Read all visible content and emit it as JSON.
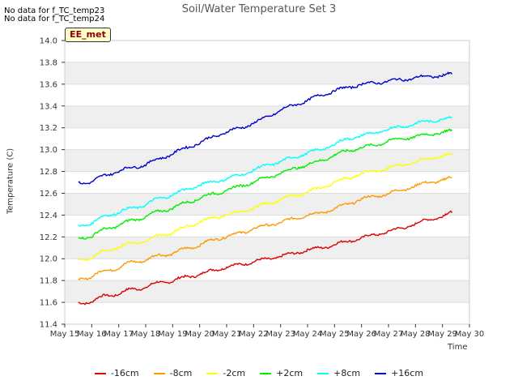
{
  "chart_data": {
    "type": "line",
    "title": "Soil/Water Temperature Set 3",
    "xlabel": "Time",
    "ylabel": "Temperature (C)",
    "no_data_notes": [
      "No data for f_TC_temp23",
      "No data for f_TC_temp24"
    ],
    "site_label": "EE_met",
    "ylim": [
      11.4,
      14.0
    ],
    "yticks": [
      11.4,
      11.6,
      11.8,
      12.0,
      12.2,
      12.4,
      12.6,
      12.8,
      13.0,
      13.2,
      13.4,
      13.6,
      13.8,
      14.0
    ],
    "ytick_labels": [
      "11.4",
      "11.6",
      "11.8",
      "12.0",
      "12.2",
      "12.4",
      "12.6",
      "12.8",
      "13.0",
      "13.2",
      "13.4",
      "13.6",
      "13.8",
      "14.0"
    ],
    "xlim": [
      15,
      30
    ],
    "xticks": [
      15,
      16,
      17,
      18,
      19,
      20,
      21,
      22,
      23,
      24,
      25,
      26,
      27,
      28,
      29,
      30
    ],
    "xtick_labels": [
      "May 15",
      "May 16",
      "May 17",
      "May 18",
      "May 19",
      "May 20",
      "May 21",
      "May 22",
      "May 23",
      "May 24",
      "May 25",
      "May 26",
      "May 27",
      "May 28",
      "May 29",
      "May 30"
    ],
    "x": [
      15.5,
      16.0,
      16.5,
      17.0,
      17.5,
      18.0,
      18.5,
      19.0,
      19.5,
      20.0,
      20.5,
      21.0,
      21.5,
      22.0,
      22.5,
      23.0,
      23.5,
      24.0,
      24.5,
      25.0,
      25.5,
      26.0,
      26.5,
      27.0,
      27.5,
      28.0,
      28.5,
      29.0,
      29.35
    ],
    "series": [
      {
        "name": "-16cm",
        "color": "#dd0000",
        "values": [
          11.6,
          11.6,
          11.67,
          11.67,
          11.73,
          11.73,
          11.79,
          11.79,
          11.84,
          11.85,
          11.9,
          11.92,
          11.95,
          11.97,
          12.0,
          12.02,
          12.05,
          12.08,
          12.1,
          12.13,
          12.16,
          12.19,
          12.22,
          12.25,
          12.28,
          12.32,
          12.36,
          12.39,
          12.42
        ]
      },
      {
        "name": "-8cm",
        "color": "#ff9900",
        "values": [
          11.82,
          11.83,
          11.9,
          11.91,
          11.98,
          11.98,
          12.04,
          12.04,
          12.1,
          12.12,
          12.18,
          12.2,
          12.24,
          12.27,
          12.31,
          12.33,
          12.37,
          12.4,
          12.42,
          12.46,
          12.5,
          12.55,
          12.57,
          12.6,
          12.63,
          12.67,
          12.7,
          12.72,
          12.74
        ]
      },
      {
        "name": "-2cm",
        "color": "#ffff00",
        "values": [
          12.0,
          12.0,
          12.08,
          12.1,
          12.15,
          12.16,
          12.22,
          12.23,
          12.3,
          12.33,
          12.38,
          12.4,
          12.43,
          12.46,
          12.51,
          12.54,
          12.58,
          12.61,
          12.65,
          12.7,
          12.74,
          12.78,
          12.8,
          12.83,
          12.86,
          12.89,
          12.92,
          12.94,
          12.95
        ]
      },
      {
        "name": "+2cm",
        "color": "#00ee00",
        "values": [
          12.2,
          12.2,
          12.28,
          12.3,
          12.36,
          12.38,
          12.44,
          12.46,
          12.52,
          12.55,
          12.6,
          12.62,
          12.67,
          12.7,
          12.75,
          12.78,
          12.83,
          12.86,
          12.9,
          12.95,
          12.99,
          13.02,
          13.04,
          13.08,
          13.1,
          13.12,
          13.14,
          13.16,
          13.17
        ]
      },
      {
        "name": "+8cm",
        "color": "#00ffff",
        "values": [
          12.31,
          12.32,
          12.4,
          12.42,
          12.47,
          12.49,
          12.56,
          12.58,
          12.64,
          12.67,
          12.71,
          12.73,
          12.77,
          12.81,
          12.86,
          12.89,
          12.93,
          12.97,
          13.0,
          13.05,
          13.1,
          13.13,
          13.15,
          13.19,
          13.21,
          13.24,
          13.26,
          13.28,
          13.29
        ]
      },
      {
        "name": "+16cm",
        "color": "#0000cc",
        "values": [
          12.7,
          12.7,
          12.77,
          12.8,
          12.84,
          12.86,
          12.92,
          12.96,
          13.02,
          13.06,
          13.12,
          13.16,
          13.2,
          13.24,
          13.3,
          13.36,
          13.41,
          13.45,
          13.5,
          13.54,
          13.57,
          13.6,
          13.61,
          13.63,
          13.64,
          13.66,
          13.67,
          13.68,
          13.69
        ]
      }
    ]
  }
}
